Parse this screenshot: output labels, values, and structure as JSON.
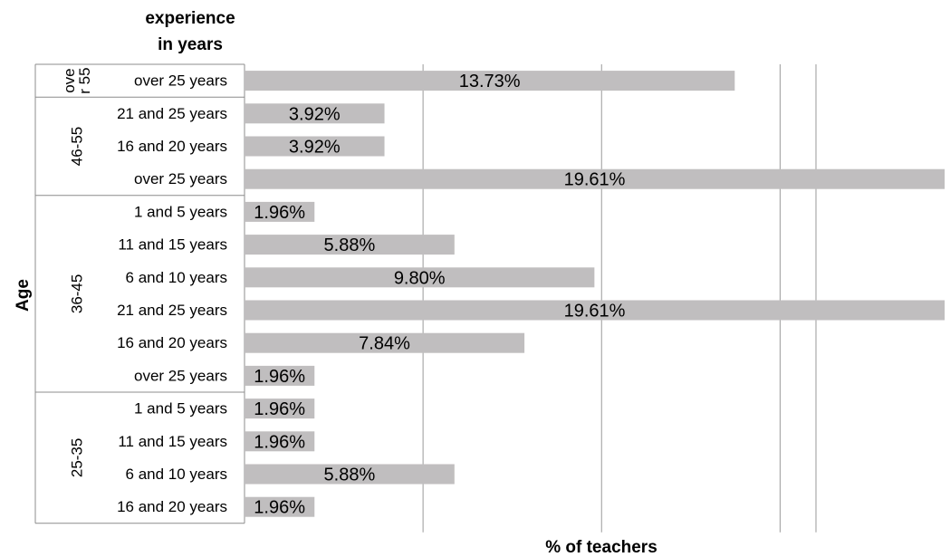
{
  "chart_data": {
    "type": "bar",
    "orientation": "horizontal",
    "title": "",
    "xlabel": "% of teachers",
    "ylabel": "Age",
    "category_header": [
      "experience",
      "in years"
    ],
    "xlim": [
      0,
      20
    ],
    "grid": true,
    "bar_color": "#c0bebf",
    "groups": [
      {
        "label": "ove r 55",
        "label_lines": [
          "ove",
          "r 55"
        ],
        "rows": [
          {
            "category": "over 25 years",
            "value": 13.73,
            "value_label": "13.73%"
          }
        ]
      },
      {
        "label": "46-55",
        "label_lines": [
          "46-55"
        ],
        "rows": [
          {
            "category": "21 and 25 years",
            "value": 3.92,
            "value_label": "3.92%"
          },
          {
            "category": "16 and 20 years",
            "value": 3.92,
            "value_label": "3.92%"
          },
          {
            "category": "over 25 years",
            "value": 19.61,
            "value_label": "19.61%"
          }
        ]
      },
      {
        "label": "36-45",
        "label_lines": [
          "36-45"
        ],
        "rows": [
          {
            "category": "1 and 5 years",
            "value": 1.96,
            "value_label": "1.96%"
          },
          {
            "category": "11 and 15 years",
            "value": 5.88,
            "value_label": "5.88%"
          },
          {
            "category": "6 and 10 years",
            "value": 9.8,
            "value_label": "9.80%"
          },
          {
            "category": "21 and 25 years",
            "value": 19.61,
            "value_label": "19.61%"
          },
          {
            "category": "16 and 20 years",
            "value": 7.84,
            "value_label": "7.84%"
          },
          {
            "category": "over 25 years",
            "value": 1.96,
            "value_label": "1.96%"
          }
        ]
      },
      {
        "label": "25-35",
        "label_lines": [
          "25-35"
        ],
        "rows": [
          {
            "category": "1 and 5 years",
            "value": 1.96,
            "value_label": "1.96%"
          },
          {
            "category": "11 and 15 years",
            "value": 1.96,
            "value_label": "1.96%"
          },
          {
            "category": "6 and 10 years",
            "value": 5.88,
            "value_label": "5.88%"
          },
          {
            "category": "16 and 20 years",
            "value": 1.96,
            "value_label": "1.96%"
          }
        ]
      }
    ]
  }
}
